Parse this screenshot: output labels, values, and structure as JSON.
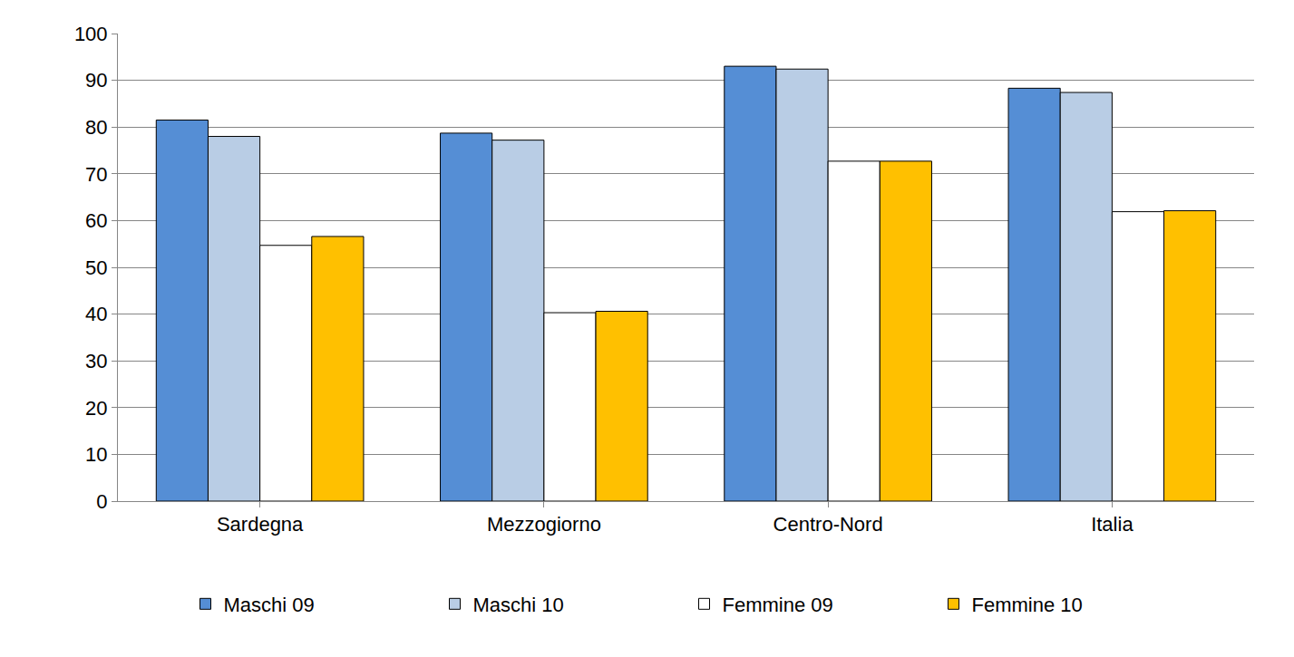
{
  "chart_data": {
    "type": "bar",
    "categories": [
      "Sardegna",
      "Mezzogiorno",
      "Centro-Nord",
      "Italia"
    ],
    "series": [
      {
        "name": "Maschi 09",
        "color": "#558ed5",
        "values": [
          81.5,
          78.7,
          93.0,
          88.3
        ]
      },
      {
        "name": "Maschi 10",
        "color": "#b9cde5",
        "values": [
          78.0,
          77.2,
          92.4,
          87.4
        ]
      },
      {
        "name": "Femmine 09",
        "color": "#ffffff",
        "values": [
          54.7,
          40.3,
          72.7,
          61.9
        ]
      },
      {
        "name": "Femmine 10",
        "color": "#ffc000",
        "values": [
          56.6,
          40.6,
          72.7,
          62.1
        ]
      }
    ],
    "ylim": [
      0,
      100
    ],
    "yticks": [
      0,
      10,
      20,
      30,
      40,
      50,
      60,
      70,
      80,
      90,
      100
    ],
    "grid": true,
    "legend": "bottom"
  }
}
